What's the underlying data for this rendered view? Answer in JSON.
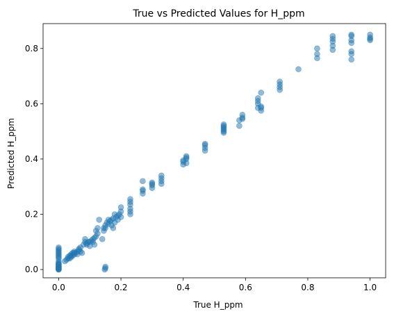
{
  "chart_data": {
    "type": "scatter",
    "title": "True vs Predicted Values for H_ppm",
    "xlabel": "True H_ppm",
    "ylabel": "Predicted H_ppm",
    "xlim": [
      -0.05,
      1.05
    ],
    "ylim": [
      -0.03,
      0.89
    ],
    "xticks": [
      0.0,
      0.2,
      0.4,
      0.6,
      0.8,
      1.0
    ],
    "xtick_labels": [
      "0.0",
      "0.2",
      "0.4",
      "0.6",
      "0.8",
      "1.0"
    ],
    "yticks": [
      0.0,
      0.2,
      0.4,
      0.6,
      0.8
    ],
    "ytick_labels": [
      "0.0",
      "0.2",
      "0.4",
      "0.6",
      "0.8"
    ],
    "grid": false,
    "marker_color": "#1f77b4",
    "marker_alpha": 0.5,
    "series": [
      {
        "x": [
          0,
          0,
          0,
          0,
          0,
          0,
          0,
          0,
          0,
          0,
          0,
          0,
          0,
          0,
          0,
          0,
          0,
          0,
          0,
          0,
          0,
          0,
          0,
          0,
          0,
          0.02,
          0.025,
          0.03,
          0.03,
          0.035,
          0.035,
          0.04,
          0.04,
          0.04,
          0.045,
          0.045,
          0.05,
          0.05,
          0.05,
          0.055,
          0.06,
          0.06,
          0.065,
          0.065,
          0.07,
          0.07,
          0.075,
          0.08,
          0.085,
          0.085,
          0.09,
          0.09,
          0.095,
          0.1,
          0.1,
          0.105,
          0.11,
          0.11,
          0.115,
          0.115,
          0.12,
          0.12,
          0.125,
          0.125,
          0.13,
          0.14,
          0.145,
          0.145,
          0.15,
          0.15,
          0.155,
          0.16,
          0.16,
          0.165,
          0.17,
          0.17,
          0.175,
          0.175,
          0.18,
          0.18,
          0.185,
          0.19,
          0.19,
          0.195,
          0.2,
          0.2,
          0.2,
          0.148,
          0.15,
          0.15,
          0.23,
          0.23,
          0.23,
          0.23,
          0.23,
          0.23,
          0.27,
          0.27,
          0.27,
          0.27,
          0.3,
          0.3,
          0.3,
          0.3,
          0.33,
          0.33,
          0.33,
          0.33,
          0.4,
          0.4,
          0.4,
          0.41,
          0.41,
          0.41,
          0.41,
          0.47,
          0.47,
          0.47,
          0.47,
          0.53,
          0.53,
          0.53,
          0.53,
          0.53,
          0.53,
          0.53,
          0.58,
          0.58,
          0.59,
          0.59,
          0.59,
          0.64,
          0.64,
          0.64,
          0.64,
          0.65,
          0.65,
          0.65,
          0.65,
          0.71,
          0.71,
          0.71,
          0.71,
          0.77,
          0.83,
          0.83,
          0.83,
          0.88,
          0.88,
          0.88,
          0.88,
          0.88,
          0.94,
          0.94,
          0.94,
          0.94,
          0.94,
          0.94,
          0.94,
          1.0,
          1.0,
          1.0,
          1.0
        ],
        "y": [
          0.0,
          0.005,
          0.01,
          0.015,
          0.02,
          0.005,
          0.01,
          0.0,
          0.003,
          0.008,
          0.012,
          0.02,
          0.025,
          0.03,
          0.04,
          0.045,
          0.05,
          0.055,
          0.06,
          0.065,
          0.07,
          0.075,
          0.08,
          0.002,
          0.018,
          0.03,
          0.035,
          0.04,
          0.045,
          0.04,
          0.05,
          0.05,
          0.055,
          0.045,
          0.05,
          0.06,
          0.055,
          0.06,
          0.065,
          0.06,
          0.065,
          0.055,
          0.07,
          0.075,
          0.065,
          0.08,
          0.06,
          0.09,
          0.1,
          0.11,
          0.09,
          0.095,
          0.1,
          0.085,
          0.1,
          0.105,
          0.1,
          0.11,
          0.09,
          0.115,
          0.12,
          0.14,
          0.15,
          0.13,
          0.18,
          0.11,
          0.14,
          0.15,
          0.15,
          0.16,
          0.17,
          0.165,
          0.18,
          0.175,
          0.16,
          0.18,
          0.15,
          0.185,
          0.17,
          0.2,
          0.19,
          0.18,
          0.195,
          0.2,
          0.19,
          0.21,
          0.225,
          0.0,
          0.005,
          0.01,
          0.2,
          0.21,
          0.22,
          0.235,
          0.245,
          0.255,
          0.275,
          0.285,
          0.29,
          0.32,
          0.295,
          0.305,
          0.31,
          0.315,
          0.31,
          0.32,
          0.33,
          0.34,
          0.38,
          0.39,
          0.395,
          0.385,
          0.4,
          0.405,
          0.41,
          0.43,
          0.44,
          0.45,
          0.455,
          0.495,
          0.5,
          0.505,
          0.51,
          0.515,
          0.52,
          0.525,
          0.52,
          0.54,
          0.545,
          0.55,
          0.56,
          0.585,
          0.6,
          0.61,
          0.62,
          0.575,
          0.585,
          0.59,
          0.64,
          0.65,
          0.66,
          0.67,
          0.68,
          0.725,
          0.765,
          0.78,
          0.8,
          0.795,
          0.81,
          0.825,
          0.835,
          0.845,
          0.76,
          0.78,
          0.79,
          0.82,
          0.83,
          0.845,
          0.85,
          0.83,
          0.835,
          0.84,
          0.85
        ]
      }
    ]
  }
}
